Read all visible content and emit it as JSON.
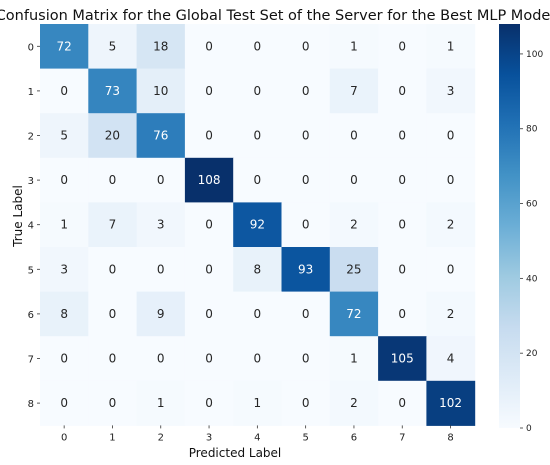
{
  "chart_data": {
    "type": "heatmap",
    "title": "Confusion Matrix for the Global Test Set of the Server for the Best MLP Model",
    "xlabel": "Predicted Label",
    "ylabel": "True Label",
    "x_categories": [
      "0",
      "1",
      "2",
      "3",
      "4",
      "5",
      "6",
      "7",
      "8"
    ],
    "y_categories": [
      "0",
      "1",
      "2",
      "3",
      "4",
      "5",
      "6",
      "7",
      "8"
    ],
    "values": [
      [
        72,
        5,
        18,
        0,
        0,
        0,
        1,
        0,
        1
      ],
      [
        0,
        73,
        10,
        0,
        0,
        0,
        7,
        0,
        3
      ],
      [
        5,
        20,
        76,
        0,
        0,
        0,
        0,
        0,
        0
      ],
      [
        0,
        0,
        0,
        108,
        0,
        0,
        0,
        0,
        0
      ],
      [
        1,
        7,
        3,
        0,
        92,
        0,
        2,
        0,
        2
      ],
      [
        3,
        0,
        0,
        0,
        8,
        93,
        25,
        0,
        0
      ],
      [
        8,
        0,
        9,
        0,
        0,
        0,
        72,
        0,
        2
      ],
      [
        0,
        0,
        0,
        0,
        0,
        0,
        1,
        105,
        4
      ],
      [
        0,
        0,
        1,
        0,
        1,
        0,
        2,
        0,
        102
      ]
    ],
    "colormap": "Blues",
    "vmin": 0,
    "vmax": 108,
    "colorbar_ticks": [
      0,
      20,
      40,
      60,
      80,
      100
    ],
    "grid": false
  }
}
